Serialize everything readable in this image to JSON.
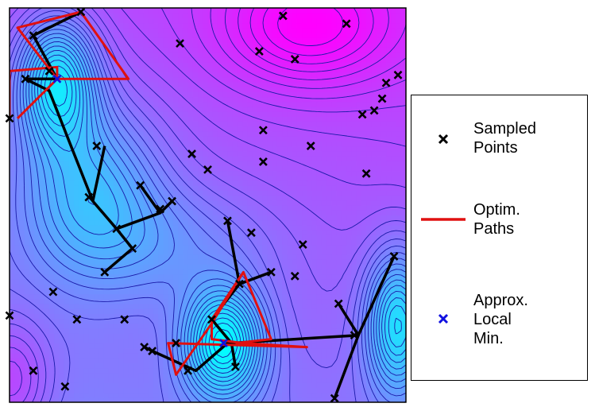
{
  "chart_data": {
    "type": "scatter",
    "title": "",
    "xlabel": "",
    "ylabel": "",
    "xlim": [
      0,
      1
    ],
    "ylim": [
      0,
      1
    ],
    "axes_ticks": false,
    "background": "contour",
    "colormap": [
      "#00ffff",
      "#ff00ff"
    ],
    "contour_line_color": "#1a1aa8",
    "legend_position": "right",
    "legend": [
      {
        "label": "Sampled\nPoints",
        "marker": "x",
        "color": "#000000"
      },
      {
        "label": "Optim.\nPaths",
        "marker": "line",
        "color": "#e01010"
      },
      {
        "label": "Approx.\nLocal\nMin.",
        "marker": "x",
        "color": "#1010e0"
      }
    ],
    "sampled_points": [
      [
        0.18,
        0.99
      ],
      [
        0.06,
        0.93
      ],
      [
        0.04,
        0.82
      ],
      [
        0.1,
        0.84
      ],
      [
        0.22,
        0.65
      ],
      [
        0.2,
        0.52
      ],
      [
        0.33,
        0.55
      ],
      [
        0.38,
        0.49
      ],
      [
        0.41,
        0.51
      ],
      [
        0.27,
        0.44
      ],
      [
        0.31,
        0.39
      ],
      [
        0.24,
        0.33
      ],
      [
        0.55,
        0.46
      ],
      [
        0.61,
        0.43
      ],
      [
        0.66,
        0.33
      ],
      [
        0.74,
        0.4
      ],
      [
        0.72,
        0.32
      ],
      [
        0.58,
        0.3
      ],
      [
        0.51,
        0.21
      ],
      [
        0.57,
        0.09
      ],
      [
        0.45,
        0.08
      ],
      [
        0.42,
        0.15
      ],
      [
        0.36,
        0.13
      ],
      [
        0.34,
        0.14
      ],
      [
        0.17,
        0.21
      ],
      [
        0.11,
        0.28
      ],
      [
        0.29,
        0.21
      ],
      [
        0.06,
        0.08
      ],
      [
        0.14,
        0.04
      ],
      [
        0.0,
        0.22
      ],
      [
        0.0,
        0.72
      ],
      [
        0.83,
        0.25
      ],
      [
        0.87,
        0.17
      ],
      [
        0.97,
        0.37
      ],
      [
        0.82,
        0.01
      ],
      [
        0.43,
        0.91
      ],
      [
        0.63,
        0.89
      ],
      [
        0.69,
        0.98
      ],
      [
        0.72,
        0.87
      ],
      [
        0.85,
        0.96
      ],
      [
        0.64,
        0.69
      ],
      [
        0.76,
        0.65
      ],
      [
        0.46,
        0.63
      ],
      [
        0.5,
        0.59
      ],
      [
        0.64,
        0.61
      ],
      [
        0.9,
        0.58
      ],
      [
        0.92,
        0.74
      ],
      [
        0.94,
        0.77
      ],
      [
        0.98,
        0.83
      ],
      [
        0.95,
        0.81
      ],
      [
        0.89,
        0.73
      ]
    ],
    "local_minima": [
      [
        0.12,
        0.82
      ],
      [
        0.54,
        0.15
      ]
    ],
    "contour_field": {
      "base": 0.8,
      "slope_x": 0.22,
      "slope_y": 0.55,
      "wells": [
        {
          "x": 0.12,
          "y": 0.82,
          "depth": 1.4,
          "sx": 0.1,
          "sy": 0.16
        },
        {
          "x": 0.2,
          "y": 0.55,
          "depth": 0.9,
          "sx": 0.18,
          "sy": 0.22
        },
        {
          "x": 0.54,
          "y": 0.15,
          "depth": 1.5,
          "sx": 0.1,
          "sy": 0.14
        },
        {
          "x": 0.98,
          "y": 0.2,
          "depth": 1.3,
          "sx": 0.08,
          "sy": 0.18
        },
        {
          "x": 0.4,
          "y": 0.4,
          "depth": 0.4,
          "sx": 0.25,
          "sy": 0.15
        }
      ],
      "bumps": [
        {
          "x": 0.75,
          "y": 0.95,
          "height": 0.7,
          "sx": 0.22,
          "sy": 0.15
        },
        {
          "x": 0.0,
          "y": 0.05,
          "height": 0.6,
          "sx": 0.1,
          "sy": 0.15
        }
      ]
    },
    "black_paths": [
      [
        [
          0.18,
          0.99
        ],
        [
          0.06,
          0.93
        ],
        [
          0.12,
          0.82
        ],
        [
          0.04,
          0.82
        ],
        [
          0.1,
          0.79
        ],
        [
          0.21,
          0.51
        ],
        [
          0.27,
          0.44
        ],
        [
          0.31,
          0.39
        ],
        [
          0.24,
          0.33
        ]
      ],
      [
        [
          0.21,
          0.51
        ],
        [
          0.24,
          0.65
        ]
      ],
      [
        [
          0.27,
          0.44
        ],
        [
          0.38,
          0.48
        ],
        [
          0.33,
          0.55
        ]
      ],
      [
        [
          0.38,
          0.48
        ],
        [
          0.41,
          0.51
        ]
      ],
      [
        [
          0.55,
          0.46
        ],
        [
          0.58,
          0.3
        ],
        [
          0.66,
          0.33
        ]
      ],
      [
        [
          0.58,
          0.3
        ],
        [
          0.51,
          0.21
        ],
        [
          0.56,
          0.15
        ],
        [
          0.57,
          0.09
        ]
      ],
      [
        [
          0.56,
          0.15
        ],
        [
          0.88,
          0.17
        ],
        [
          0.83,
          0.25
        ]
      ],
      [
        [
          0.88,
          0.17
        ],
        [
          0.97,
          0.37
        ]
      ],
      [
        [
          0.88,
          0.17
        ],
        [
          0.82,
          0.01
        ]
      ],
      [
        [
          0.56,
          0.15
        ],
        [
          0.55,
          0.15
        ],
        [
          0.47,
          0.08
        ],
        [
          0.36,
          0.13
        ],
        [
          0.34,
          0.14
        ]
      ]
    ],
    "red_paths": [
      [
        [
          0.0,
          0.72
        ],
        [
          0.0,
          0.84
        ],
        [
          0.12,
          0.85
        ],
        [
          0.12,
          0.82
        ],
        [
          0.3,
          0.82
        ],
        [
          0.18,
          0.99
        ],
        [
          0.02,
          0.95
        ],
        [
          0.12,
          0.82
        ],
        [
          0.02,
          0.72
        ]
      ],
      [
        [
          0.59,
          0.33
        ],
        [
          0.51,
          0.21
        ],
        [
          0.51,
          0.16
        ],
        [
          0.59,
          0.15
        ],
        [
          0.75,
          0.14
        ],
        [
          0.4,
          0.15
        ],
        [
          0.42,
          0.07
        ],
        [
          0.51,
          0.2
        ],
        [
          0.59,
          0.33
        ],
        [
          0.66,
          0.16
        ],
        [
          0.57,
          0.15
        ]
      ]
    ]
  }
}
